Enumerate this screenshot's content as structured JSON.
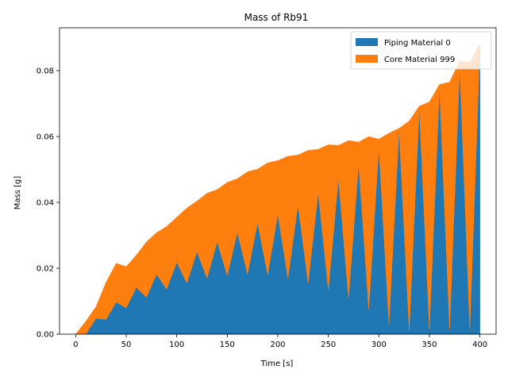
{
  "chart_data": {
    "type": "area",
    "stacked": true,
    "title": "Mass of Rb91",
    "xlabel": "Time [s]",
    "ylabel": "Mass [g]",
    "xlim": [
      -16,
      416
    ],
    "ylim": [
      0,
      0.093
    ],
    "xticks": [
      0,
      50,
      100,
      150,
      200,
      250,
      300,
      350,
      400
    ],
    "yticks": [
      0.0,
      0.02,
      0.04,
      0.06,
      0.08
    ],
    "ytick_labels": [
      "0.00",
      "0.02",
      "0.04",
      "0.06",
      "0.08"
    ],
    "legend_position": "top-right",
    "grid": false,
    "x": [
      0,
      10,
      20,
      30,
      40,
      50,
      60,
      70,
      80,
      90,
      100,
      110,
      120,
      130,
      140,
      150,
      160,
      170,
      180,
      190,
      200,
      210,
      220,
      230,
      240,
      250,
      260,
      270,
      280,
      290,
      300,
      310,
      320,
      330,
      340,
      350,
      360,
      370,
      380,
      390,
      400
    ],
    "series": [
      {
        "name": "Piping Material 0",
        "color": "#1f77b4",
        "values": [
          0.0,
          0.0,
          0.0048,
          0.0045,
          0.0097,
          0.008,
          0.0142,
          0.0112,
          0.0182,
          0.0137,
          0.0218,
          0.0155,
          0.025,
          0.017,
          0.0281,
          0.0178,
          0.031,
          0.0182,
          0.0338,
          0.018,
          0.0365,
          0.017,
          0.0393,
          0.0155,
          0.043,
          0.0135,
          0.0472,
          0.011,
          0.0517,
          0.0075,
          0.0567,
          0.003,
          0.062,
          0.0012,
          0.0685,
          0.0015,
          0.0745,
          0.0015,
          0.081,
          0.0015,
          0.087
        ]
      },
      {
        "name": "Core Material 999",
        "color": "#ff7f0e",
        "values": [
          0.0,
          0.0039,
          0.0035,
          0.0112,
          0.0118,
          0.0125,
          0.0098,
          0.0168,
          0.0126,
          0.019,
          0.0137,
          0.0228,
          0.0154,
          0.0258,
          0.0158,
          0.0283,
          0.0162,
          0.0311,
          0.0163,
          0.034,
          0.0162,
          0.037,
          0.0151,
          0.0403,
          0.0131,
          0.044,
          0.0101,
          0.0478,
          0.0066,
          0.0525,
          0.0025,
          0.058,
          0.0005,
          0.0635,
          0.0007,
          0.069,
          0.0013,
          0.075,
          0.0019,
          0.081,
          0.001
        ]
      }
    ]
  }
}
